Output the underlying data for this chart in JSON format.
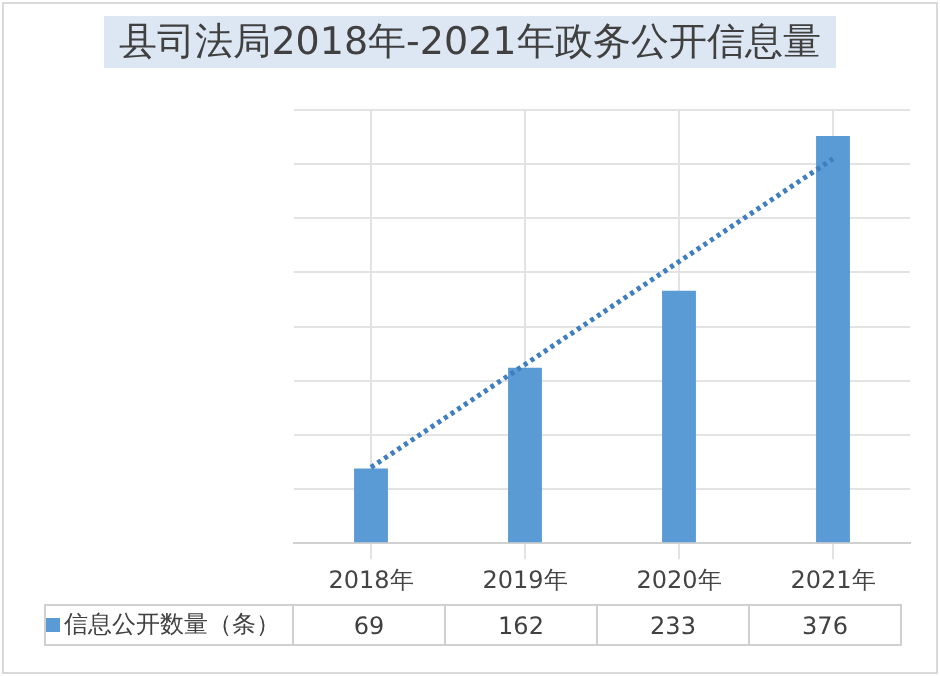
{
  "chart_data": {
    "type": "bar",
    "title": "县司法局2018年-2021年政务公开信息量",
    "categories": [
      "2018年",
      "2019年",
      "2020年",
      "2021年"
    ],
    "series": [
      {
        "name": "信息公开数量（条）",
        "color": "#5b9bd5",
        "values": [
          69,
          162,
          233,
          376
        ],
        "value_labels": [
          "69",
          "162",
          "233",
          "376"
        ]
      },
      {
        "type": "line",
        "color": "#3f7fc0",
        "line_style": "dotted",
        "marker": "none",
        "values": [
          70,
          165,
          260,
          355
        ]
      }
    ],
    "ylim": [
      0,
      400
    ],
    "yticks": [
      {
        "value": 0,
        "label": null
      },
      {
        "value": 50,
        "label": null
      },
      {
        "value": 100,
        "label": null
      },
      {
        "value": 150,
        "label": null
      },
      {
        "value": 200,
        "label": null
      },
      {
        "value": 250,
        "label": null
      },
      {
        "value": 300,
        "label": null
      },
      {
        "value": 350,
        "label": null
      },
      {
        "value": 400,
        "label": null
      }
    ],
    "tick_labels": "x",
    "grid": true,
    "legend": "bottom left"
  }
}
